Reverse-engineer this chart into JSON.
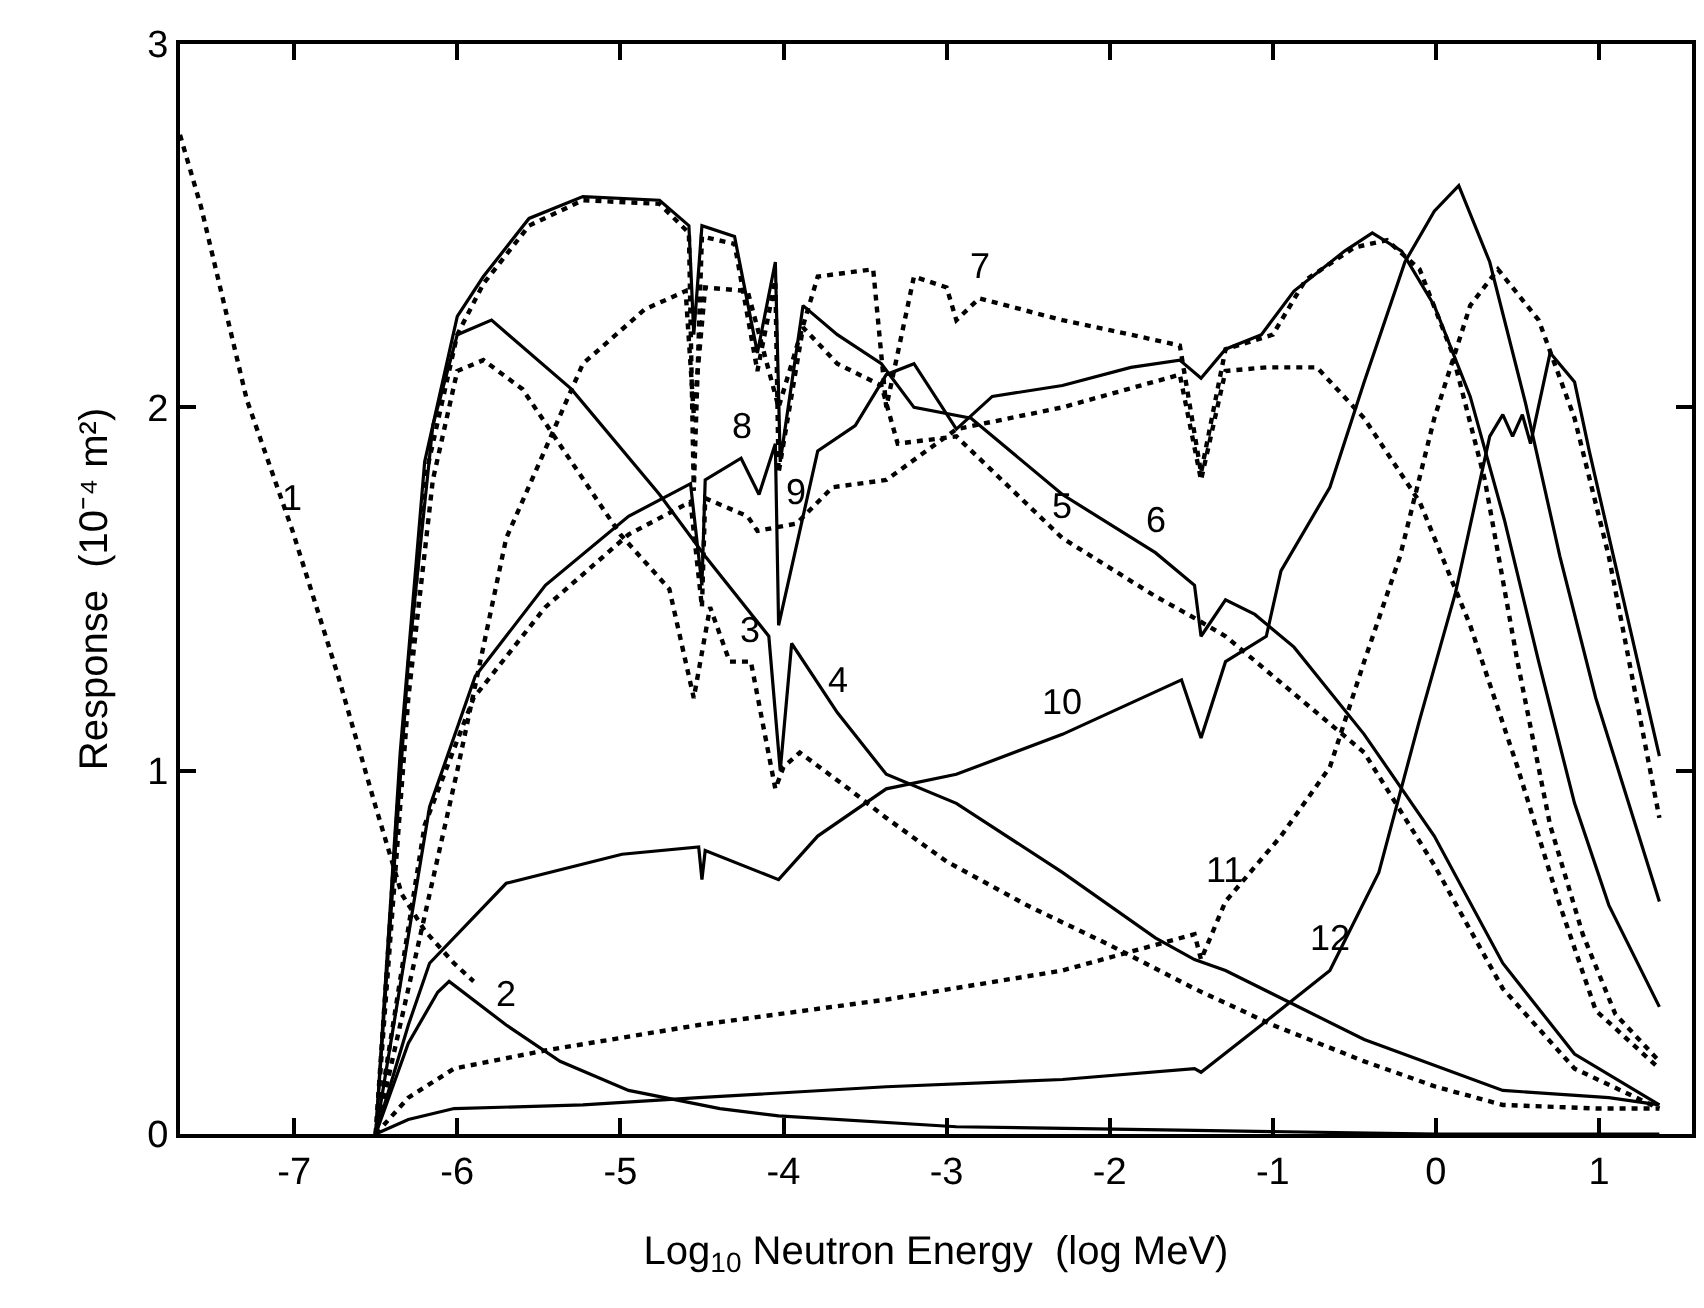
{
  "chart_data": {
    "type": "line",
    "xlabel": "Log$_{10}$ Neutron Energy  (log MeV)",
    "ylabel": "Response  (10⁻⁴ m²)",
    "xlim": [
      -7.7,
      1.57
    ],
    "ylim": [
      0,
      3
    ],
    "xticks": [
      -7,
      -6,
      -5,
      -4,
      -3,
      -2,
      -1,
      0,
      1
    ],
    "yticks": [
      0,
      1,
      2,
      3
    ],
    "grid": false,
    "marker": "none",
    "series": [
      {
        "color": "#000000",
        "line_style": "dotted",
        "x": [
          -7.7,
          -7.57,
          -7.29,
          -7.01,
          -6.73,
          -6.5,
          -6.34,
          -6.2,
          -6.02,
          -5.9
        ],
        "values": [
          2.75,
          2.55,
          2.02,
          1.66,
          1.26,
          0.9,
          0.66,
          0.56,
          0.47,
          0.42
        ]
      },
      {
        "color": "#000000",
        "line_style": "solid",
        "x": [
          -6.5,
          -6.3,
          -6.12,
          -6.05,
          -5.7,
          -5.37,
          -4.95,
          -4.39,
          -4.03,
          -2.94,
          -1.48,
          0,
          1.37
        ],
        "values": [
          0,
          0.25,
          0.39,
          0.42,
          0.3,
          0.2,
          0.12,
          0.07,
          0.05,
          0.02,
          0.01,
          0,
          0
        ]
      },
      {
        "color": "#000000",
        "line_style": "dotted",
        "x": [
          -6.5,
          -6.3,
          -6.15,
          -6.0,
          -5.84,
          -5.6,
          -5.3,
          -5.0,
          -4.7,
          -4.55,
          -4.45,
          -4.33,
          -4.2,
          -4.05,
          -4.0,
          -3.9,
          -3.6,
          -3.37,
          -3.0,
          -2.51,
          -2.0,
          -1.48,
          -1.0,
          -0.44,
          0,
          0.41,
          1.0,
          1.37
        ],
        "values": [
          0,
          1.2,
          1.8,
          2.1,
          2.13,
          2.05,
          1.85,
          1.65,
          1.5,
          1.2,
          1.45,
          1.3,
          1.3,
          0.95,
          1.01,
          1.05,
          0.95,
          0.87,
          0.75,
          0.63,
          0.52,
          0.4,
          0.3,
          0.2,
          0.13,
          0.08,
          0.07,
          0.07
        ]
      },
      {
        "color": "#000000",
        "line_style": "solid",
        "x": [
          -6.5,
          -6.3,
          -6.15,
          -6.0,
          -5.79,
          -5.3,
          -4.76,
          -4.48,
          -4.09,
          -4.02,
          -3.95,
          -3.67,
          -3.37,
          -2.94,
          -2.29,
          -1.72,
          -1.48,
          -1.29,
          -0.44,
          0.41,
          1.06,
          1.37
        ],
        "values": [
          0,
          1.3,
          1.95,
          2.2,
          2.24,
          2.05,
          1.76,
          1.59,
          1.37,
          1.0,
          1.35,
          1.16,
          0.99,
          0.91,
          0.72,
          0.54,
          0.48,
          0.45,
          0.26,
          0.12,
          0.1,
          0.08
        ]
      },
      {
        "color": "#000000",
        "line_style": "dotted",
        "x": [
          -6.5,
          -6.35,
          -6.2,
          -6.0,
          -5.84,
          -5.56,
          -5.23,
          -4.76,
          -4.58,
          -4.55,
          -4.5,
          -4.3,
          -4.16,
          -4.05,
          -4.03,
          -3.88,
          -3.67,
          -3.4,
          -3.3,
          -2.94,
          -2.29,
          -1.72,
          -1.48,
          -1.29,
          -0.44,
          -0.01,
          0.41,
          0.85,
          1.37
        ],
        "values": [
          0,
          1.0,
          1.8,
          2.2,
          2.34,
          2.5,
          2.57,
          2.56,
          2.48,
          1.77,
          2.47,
          2.45,
          2.1,
          2.35,
          1.82,
          2.22,
          2.12,
          2.06,
          1.9,
          1.92,
          1.64,
          1.48,
          1.42,
          1.37,
          1.05,
          0.74,
          0.4,
          0.18,
          0.07
        ]
      },
      {
        "color": "#000000",
        "line_style": "solid",
        "x": [
          -6.5,
          -6.35,
          -6.2,
          -6.0,
          -5.84,
          -5.56,
          -5.23,
          -4.76,
          -4.58,
          -4.55,
          -4.5,
          -4.3,
          -4.16,
          -4.05,
          -4.02,
          -3.88,
          -3.67,
          -3.4,
          -3.2,
          -2.85,
          -2.29,
          -1.72,
          -1.48,
          -1.44,
          -1.29,
          -1.11,
          -0.87,
          -0.44,
          -0.01,
          0.41,
          0.85,
          1.37
        ],
        "values": [
          0,
          1.05,
          1.85,
          2.25,
          2.36,
          2.52,
          2.58,
          2.57,
          2.5,
          2.2,
          2.5,
          2.47,
          2.15,
          2.4,
          1.85,
          2.28,
          2.2,
          2.12,
          2.0,
          1.97,
          1.76,
          1.6,
          1.51,
          1.37,
          1.47,
          1.43,
          1.34,
          1.1,
          0.82,
          0.47,
          0.22,
          0.08
        ]
      },
      {
        "color": "#000000",
        "line_style": "dotted",
        "x": [
          -6.5,
          -6.25,
          -6.0,
          -5.7,
          -5.23,
          -4.85,
          -4.6,
          -4.55,
          -4.48,
          -4.22,
          -4.03,
          -3.79,
          -3.45,
          -3.37,
          -3.2,
          -3.0,
          -2.94,
          -2.8,
          -2.29,
          -1.87,
          -1.57,
          -1.44,
          -1.29,
          -1.0,
          -0.8,
          -0.5,
          -0.3,
          -0.1,
          0.1,
          0.3,
          0.5,
          0.7,
          0.9,
          1.1,
          1.37
        ],
        "values": [
          0,
          0.5,
          1.0,
          1.64,
          2.12,
          2.27,
          2.32,
          1.98,
          2.33,
          2.32,
          2.0,
          2.36,
          2.38,
          2.0,
          2.36,
          2.33,
          2.24,
          2.3,
          2.24,
          2.2,
          2.17,
          1.82,
          2.16,
          2.2,
          2.35,
          2.44,
          2.46,
          2.38,
          2.15,
          1.8,
          1.3,
          0.85,
          0.55,
          0.33,
          0.2
        ]
      },
      {
        "color": "#000000",
        "line_style": "solid",
        "x": [
          -6.5,
          -6.17,
          -5.89,
          -5.46,
          -4.95,
          -4.57,
          -4.5,
          -4.48,
          -4.26,
          -4.15,
          -4.05,
          -4.03,
          -3.79,
          -3.56,
          -3.37,
          -3.2,
          -2.94,
          -2.72,
          -2.29,
          -1.87,
          -1.57,
          -1.44,
          -1.29,
          -1.07,
          -0.87,
          -0.56,
          -0.39,
          -0.21,
          -0.01,
          0.21,
          0.42,
          0.63,
          0.85,
          1.06,
          1.37
        ],
        "values": [
          0,
          0.9,
          1.26,
          1.51,
          1.7,
          1.79,
          1.51,
          1.8,
          1.86,
          1.76,
          1.9,
          1.4,
          1.88,
          1.95,
          2.09,
          2.12,
          1.94,
          2.03,
          2.06,
          2.11,
          2.13,
          2.08,
          2.16,
          2.2,
          2.32,
          2.43,
          2.48,
          2.43,
          2.28,
          2.03,
          1.69,
          1.3,
          0.91,
          0.63,
          0.35
        ]
      },
      {
        "color": "#000000",
        "line_style": "dotted",
        "x": [
          -6.5,
          -6.2,
          -5.9,
          -5.46,
          -4.95,
          -4.57,
          -4.5,
          -4.48,
          -4.22,
          -4.16,
          -3.92,
          -3.7,
          -3.37,
          -2.94,
          -2.29,
          -1.57,
          -1.44,
          -1.29,
          -1.04,
          -0.73,
          -0.44,
          -0.1,
          0.21,
          0.5,
          0.76,
          0.98,
          1.37
        ],
        "values": [
          0,
          0.85,
          1.2,
          1.45,
          1.65,
          1.74,
          1.45,
          1.75,
          1.7,
          1.66,
          1.68,
          1.78,
          1.8,
          1.94,
          2.0,
          2.09,
          1.8,
          2.1,
          2.11,
          2.11,
          1.97,
          1.74,
          1.4,
          1.01,
          0.63,
          0.34,
          0.18
        ]
      },
      {
        "color": "#000000",
        "line_style": "solid",
        "x": [
          -6.5,
          -6.3,
          -6.17,
          -5.7,
          -4.99,
          -4.52,
          -4.5,
          -4.48,
          -4.03,
          -3.79,
          -3.37,
          -2.94,
          -2.29,
          -1.56,
          -1.44,
          -1.29,
          -1.04,
          -0.95,
          -0.65,
          -0.44,
          -0.19,
          -0.01,
          0.14,
          0.33,
          0.55,
          0.76,
          0.98,
          1.37
        ],
        "values": [
          0,
          0.3,
          0.47,
          0.69,
          0.77,
          0.79,
          0.7,
          0.78,
          0.7,
          0.82,
          0.95,
          0.99,
          1.1,
          1.25,
          1.09,
          1.3,
          1.37,
          1.55,
          1.78,
          2.07,
          2.4,
          2.54,
          2.61,
          2.4,
          2.01,
          1.59,
          1.2,
          0.64
        ]
      },
      {
        "color": "#000000",
        "line_style": "dotted",
        "x": [
          -6.5,
          -6.3,
          -6.02,
          -5.46,
          -4.52,
          -3.37,
          -2.29,
          -1.48,
          -1.44,
          -1.29,
          -0.95,
          -0.65,
          -0.44,
          -0.22,
          -0.01,
          0.21,
          0.38,
          0.63,
          0.85,
          1.06,
          1.37
        ],
        "values": [
          0,
          0.1,
          0.18,
          0.23,
          0.3,
          0.37,
          0.45,
          0.55,
          0.48,
          0.64,
          0.82,
          1.01,
          1.3,
          1.59,
          1.97,
          2.28,
          2.38,
          2.24,
          1.97,
          1.59,
          0.87
        ]
      },
      {
        "color": "#000000",
        "line_style": "solid",
        "x": [
          -6.5,
          -6.3,
          -6.02,
          -5.23,
          -4.52,
          -3.37,
          -2.29,
          -1.48,
          -1.44,
          -1.07,
          -0.65,
          -0.35,
          -0.1,
          0.12,
          0.33,
          0.41,
          0.47,
          0.53,
          0.58,
          0.7,
          0.85,
          0.94,
          1.37
        ],
        "values": [
          0,
          0.04,
          0.07,
          0.08,
          0.1,
          0.13,
          0.15,
          0.18,
          0.17,
          0.3,
          0.45,
          0.72,
          1.14,
          1.49,
          1.92,
          1.98,
          1.92,
          1.98,
          1.9,
          2.15,
          2.07,
          1.88,
          1.04
        ]
      }
    ],
    "annotations": [
      {
        "text": "1",
        "x": -7.01,
        "y": 1.66
      },
      {
        "text": "2",
        "x": -5.7,
        "y": 0.3
      },
      {
        "text": "3",
        "x": -4.2,
        "y": 1.3
      },
      {
        "text": "4",
        "x": -3.67,
        "y": 1.16
      },
      {
        "text": "5",
        "x": -2.29,
        "y": 1.64
      },
      {
        "text": "6",
        "x": -1.72,
        "y": 1.6
      },
      {
        "text": "7",
        "x": -2.8,
        "y": 2.3
      },
      {
        "text": "8",
        "x": -4.26,
        "y": 1.86
      },
      {
        "text": "9",
        "x": -3.92,
        "y": 1.68
      },
      {
        "text": "10",
        "x": -2.29,
        "y": 1.1
      },
      {
        "text": "11",
        "x": -1.29,
        "y": 0.64
      },
      {
        "text": "12",
        "x": -0.65,
        "y": 0.45
      }
    ]
  }
}
